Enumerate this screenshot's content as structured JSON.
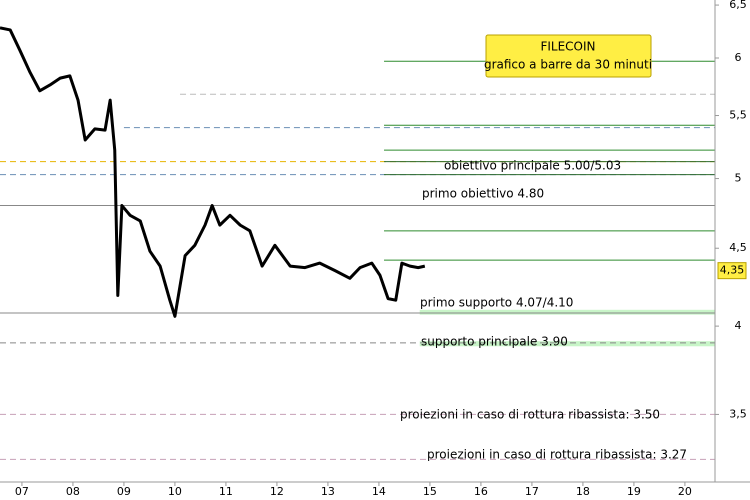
{
  "chart_data": {
    "type": "line",
    "title": "FILECOIN",
    "subtitle": "grafico a barre da 30 minuti",
    "log_scale": true,
    "xlim": [
      6.57,
      20.59
    ],
    "ylim": [
      3.16,
      6.55
    ],
    "xticks": [
      {
        "value": 7,
        "label": "07"
      },
      {
        "value": 8,
        "label": "08"
      },
      {
        "value": 9,
        "label": "09"
      },
      10,
      11,
      12,
      13,
      14,
      15,
      16,
      17,
      18,
      19,
      20
    ],
    "yticks": [
      {
        "value": 3.5,
        "label": "3,5"
      },
      4,
      {
        "value": 4.5,
        "label": "4,5"
      },
      5,
      {
        "value": 5.5,
        "label": "5,5"
      },
      6,
      {
        "value": 6.5,
        "label": "6,5"
      }
    ],
    "series": [
      {
        "color": "#000000",
        "x": [
          6.57,
          6.77,
          6.96,
          7.16,
          7.35,
          7.55,
          7.75,
          7.94,
          8.1,
          8.24,
          8.43,
          8.63,
          8.73,
          8.82,
          8.88,
          8.96,
          9.12,
          9.32,
          9.51,
          9.71,
          9.9,
          10.0,
          10.2,
          10.39,
          10.59,
          10.73,
          10.88,
          11.08,
          11.28,
          11.47,
          11.71,
          11.96,
          12.26,
          12.55,
          12.84,
          13.14,
          13.43,
          13.63,
          13.86,
          14.02,
          14.18,
          14.33,
          14.45,
          14.61,
          14.77,
          14.9
        ],
        "values": [
          6.28,
          6.26,
          6.07,
          5.87,
          5.71,
          5.76,
          5.82,
          5.84,
          5.63,
          5.3,
          5.39,
          5.38,
          5.63,
          5.22,
          4.19,
          4.8,
          4.73,
          4.69,
          4.48,
          4.38,
          4.16,
          4.06,
          4.45,
          4.52,
          4.66,
          4.8,
          4.66,
          4.73,
          4.66,
          4.62,
          4.38,
          4.52,
          4.38,
          4.37,
          4.4,
          4.35,
          4.3,
          4.37,
          4.4,
          4.32,
          4.17,
          4.16,
          4.4,
          4.38,
          4.37,
          4.38
        ]
      }
    ],
    "last_price": {
      "value": 4.35,
      "label": "4,35"
    },
    "levels": [
      {
        "value": 5.97,
        "color": "#2e8b2e",
        "style": "solid",
        "from": 14.1
      },
      {
        "value": 5.68,
        "color": "#bbbbbb",
        "style": "dashed",
        "from": 10.1
      },
      {
        "value": 5.4,
        "color": "#6a8fb5",
        "style": "dashed",
        "from": 9.0
      },
      {
        "value": 5.42,
        "color": "#2e8b2e",
        "style": "solid",
        "from": 14.1
      },
      {
        "value": 5.22,
        "color": "#2e8b2e",
        "style": "solid",
        "from": 14.1
      },
      {
        "value": 5.13,
        "color": "#e8b400",
        "style": "dashed",
        "from": 6.57
      },
      {
        "value": 5.13,
        "color": "#2e6b2e",
        "style": "solid",
        "from": 14.1
      },
      {
        "value": 5.03,
        "color": "#6a8fb5",
        "style": "dashed",
        "from": 6.57
      },
      {
        "value": 5.03,
        "color": "#2e6b2e",
        "style": "solid",
        "from": 14.1
      },
      {
        "value": 4.8,
        "color": "#888888",
        "style": "solid",
        "from": 6.57
      },
      {
        "value": 4.62,
        "color": "#2e8b2e",
        "style": "solid",
        "from": 14.1
      },
      {
        "value": 4.42,
        "color": "#2e8b2e",
        "style": "solid",
        "from": 14.1
      },
      {
        "value": 4.08,
        "color": "#888888",
        "style": "solid",
        "from": 6.57
      },
      {
        "value": 3.9,
        "color": "#888888",
        "style": "dashed",
        "from": 6.57
      },
      {
        "value": 3.5,
        "color": "#c8a0b8",
        "style": "dashed",
        "from": 6.57
      },
      {
        "value": 3.27,
        "color": "#c8a0b8",
        "style": "dashed",
        "from": 6.57
      }
    ],
    "bands": [
      {
        "from": 14.8,
        "low": 4.07,
        "high": 4.1,
        "color": "#c8f5c8"
      },
      {
        "from": 14.8,
        "low": 3.88,
        "high": 3.91,
        "color": "#c8f5c8"
      }
    ],
    "annotations": [
      "obiettivo principale 5.00/5.03",
      "primo obiettivo 4.80",
      "primo supporto 4.07/4.10",
      "supporto principale 3.90",
      "proiezioni in caso di rottura ribassista: 3.50",
      "proiezioni in caso di rottura ribassista: 3.27"
    ]
  }
}
